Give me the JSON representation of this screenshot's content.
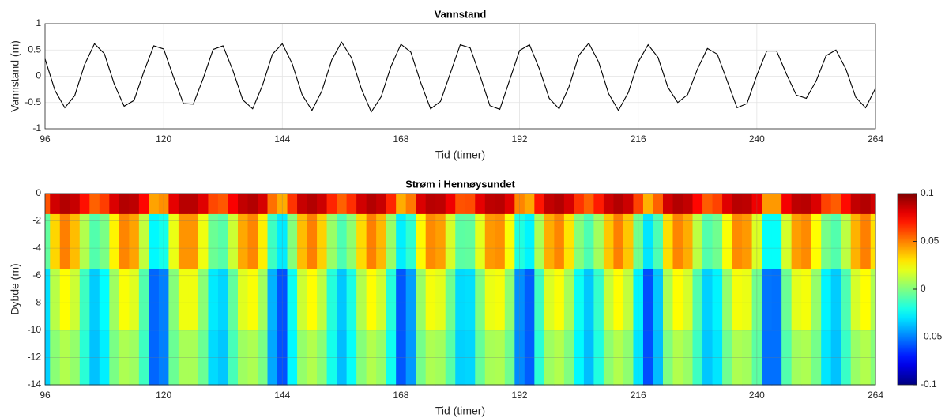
{
  "chart_data": [
    {
      "type": "line",
      "title": "Vannstand",
      "xlabel": "Tid (timer)",
      "ylabel": "Vannstand (m)",
      "color": "#000000",
      "grid": true,
      "xlim": [
        96,
        264
      ],
      "ylim": [
        -1,
        1
      ],
      "xticks": [
        96,
        120,
        144,
        168,
        192,
        216,
        240,
        264
      ],
      "yticks": [
        -1,
        -0.5,
        0,
        0.5,
        1
      ],
      "x": [
        96,
        98,
        100,
        102,
        104,
        106,
        108,
        110,
        112,
        114,
        116,
        118,
        120,
        122,
        124,
        126,
        128,
        130,
        132,
        134,
        136,
        138,
        140,
        142,
        144,
        146,
        148,
        150,
        152,
        154,
        156,
        158,
        160,
        162,
        164,
        166,
        168,
        170,
        172,
        174,
        176,
        178,
        180,
        182,
        184,
        186,
        188,
        190,
        192,
        194,
        196,
        198,
        200,
        202,
        204,
        206,
        208,
        210,
        212,
        214,
        216,
        218,
        220,
        222,
        224,
        226,
        228,
        230,
        232,
        234,
        236,
        238,
        240,
        242,
        244,
        246,
        248,
        250,
        252,
        254,
        256,
        258,
        260,
        262,
        264
      ],
      "values": [
        0.33,
        -0.27,
        -0.6,
        -0.37,
        0.22,
        0.62,
        0.43,
        -0.15,
        -0.57,
        -0.46,
        0.09,
        0.58,
        0.52,
        -0.02,
        -0.52,
        -0.53,
        -0.04,
        0.51,
        0.58,
        0.11,
        -0.45,
        -0.62,
        -0.17,
        0.42,
        0.62,
        0.24,
        -0.35,
        -0.65,
        -0.28,
        0.31,
        0.65,
        0.35,
        -0.24,
        -0.68,
        -0.39,
        0.19,
        0.61,
        0.46,
        -0.12,
        -0.62,
        -0.48,
        0.06,
        0.6,
        0.54,
        0.01,
        -0.56,
        -0.63,
        -0.07,
        0.49,
        0.6,
        0.14,
        -0.42,
        -0.62,
        -0.2,
        0.4,
        0.63,
        0.27,
        -0.33,
        -0.65,
        -0.31,
        0.27,
        0.6,
        0.36,
        -0.21,
        -0.5,
        -0.35,
        0.14,
        0.53,
        0.42,
        -0.09,
        -0.6,
        -0.52,
        0.02,
        0.48,
        0.48,
        0.04,
        -0.36,
        -0.42,
        -0.09,
        0.39,
        0.5,
        0.14,
        -0.4,
        -0.6,
        -0.23
      ]
    },
    {
      "type": "heatmap",
      "title": "Strøm i Hennøysundet",
      "xlabel": "Tid (timer)",
      "ylabel": "Dybde (m)",
      "colormap": "jet",
      "grid": true,
      "xlim": [
        96,
        264
      ],
      "ylim": [
        -14,
        0
      ],
      "xticks": [
        96,
        120,
        144,
        168,
        192,
        216,
        240,
        264
      ],
      "yticks": [
        0,
        -2,
        -4,
        -6,
        -8,
        -10,
        -12,
        -14
      ],
      "clim": [
        -0.1,
        0.1
      ],
      "cticks": [
        0.1,
        0.05,
        0,
        -0.05,
        -0.1
      ],
      "x": [
        96,
        98,
        100,
        102,
        104,
        106,
        108,
        110,
        112,
        114,
        116,
        118,
        120,
        122,
        124,
        126,
        128,
        130,
        132,
        134,
        136,
        138,
        140,
        142,
        144,
        146,
        148,
        150,
        152,
        154,
        156,
        158,
        160,
        162,
        164,
        166,
        168,
        170,
        172,
        174,
        176,
        178,
        180,
        182,
        184,
        186,
        188,
        190,
        192,
        194,
        196,
        198,
        200,
        202,
        204,
        206,
        208,
        210,
        212,
        214,
        216,
        218,
        220,
        222,
        224,
        226,
        228,
        230,
        232,
        234,
        236,
        238,
        240,
        242,
        244,
        246,
        248,
        250,
        252,
        254,
        256,
        258,
        260,
        262,
        264
      ],
      "y": [
        0,
        -3,
        -8,
        -12
      ],
      "z": [
        [
          0.059,
          0.084,
          0.09,
          0.086,
          0.072,
          0.056,
          0.063,
          0.082,
          0.09,
          0.088,
          0.074,
          0.043,
          0.047,
          0.08,
          0.089,
          0.089,
          0.081,
          0.061,
          0.058,
          0.076,
          0.087,
          0.09,
          0.083,
          0.053,
          0.041,
          0.065,
          0.086,
          0.09,
          0.085,
          0.068,
          0.056,
          0.066,
          0.084,
          0.09,
          0.086,
          0.068,
          0.041,
          0.051,
          0.082,
          0.089,
          0.088,
          0.078,
          0.059,
          0.06,
          0.08,
          0.088,
          0.089,
          0.081,
          0.049,
          0.042,
          0.071,
          0.087,
          0.09,
          0.083,
          0.065,
          0.056,
          0.07,
          0.085,
          0.09,
          0.085,
          0.062,
          0.04,
          0.056,
          0.084,
          0.09,
          0.087,
          0.074,
          0.057,
          0.062,
          0.081,
          0.089,
          0.088,
          0.078,
          0.045,
          0.045,
          0.077,
          0.088,
          0.089,
          0.082,
          0.062,
          0.057,
          0.073,
          0.087,
          0.09,
          0.084
        ],
        [
          -0.006,
          0.033,
          0.05,
          0.038,
          0.01,
          -0.009,
          -0.001,
          0.027,
          0.049,
          0.043,
          0.013,
          -0.026,
          -0.021,
          0.021,
          0.046,
          0.046,
          0.022,
          -0.004,
          -0.008,
          0.015,
          0.042,
          0.049,
          0.028,
          -0.013,
          -0.029,
          0.001,
          0.038,
          0.05,
          0.034,
          0.005,
          -0.01,
          0.003,
          0.032,
          0.05,
          0.039,
          0.005,
          -0.028,
          -0.016,
          0.026,
          0.048,
          0.044,
          0.017,
          -0.007,
          -0.006,
          0.02,
          0.045,
          0.047,
          0.024,
          -0.019,
          -0.027,
          0.009,
          0.041,
          0.049,
          0.03,
          0.001,
          -0.01,
          0.007,
          0.036,
          0.05,
          0.036,
          -0.003,
          -0.03,
          -0.01,
          0.031,
          0.049,
          0.041,
          0.012,
          -0.009,
          -0.003,
          0.024,
          0.048,
          0.045,
          0.018,
          -0.024,
          -0.024,
          0.017,
          0.044,
          0.048,
          0.025,
          -0.002,
          -0.009,
          0.012,
          0.04,
          0.05,
          0.031
        ],
        [
          -0.031,
          0.011,
          0.025,
          0.015,
          -0.013,
          -0.035,
          -0.025,
          0.006,
          0.024,
          0.019,
          -0.009,
          -0.055,
          -0.05,
          0.001,
          0.022,
          0.022,
          0.002,
          -0.029,
          -0.033,
          -0.006,
          0.019,
          0.024,
          0.007,
          -0.04,
          -0.059,
          -0.023,
          0.015,
          0.025,
          0.012,
          -0.018,
          -0.036,
          -0.02,
          0.01,
          0.025,
          0.016,
          -0.018,
          -0.058,
          -0.044,
          0.005,
          0.023,
          0.02,
          -0.003,
          -0.032,
          -0.031,
          0,
          0.021,
          0.023,
          0.003,
          -0.047,
          -0.057,
          -0.013,
          0.018,
          0.024,
          0.008,
          -0.023,
          -0.036,
          -0.015,
          0.014,
          0.025,
          0.013,
          -0.027,
          -0.06,
          -0.036,
          0.009,
          0.025,
          0.017,
          -0.009,
          -0.034,
          -0.027,
          0.004,
          0.023,
          0.021,
          -0.003,
          -0.052,
          -0.053,
          -0.004,
          0.02,
          0.023,
          0.004,
          -0.027,
          -0.035,
          -0.01,
          0.017,
          0.025,
          0.009
        ],
        [
          -0.034,
          0.002,
          0.01,
          0.004,
          -0.017,
          -0.037,
          -0.028,
          -0.001,
          0.009,
          0.006,
          -0.013,
          -0.055,
          -0.05,
          -0.004,
          0.008,
          0.008,
          -0.004,
          -0.032,
          -0.036,
          -0.011,
          0.006,
          0.009,
          -0.001,
          -0.042,
          -0.059,
          -0.026,
          0.004,
          0.01,
          0.002,
          -0.021,
          -0.038,
          -0.024,
          0.001,
          0.01,
          0.005,
          -0.022,
          -0.058,
          -0.045,
          -0.002,
          0.009,
          0.007,
          -0.008,
          -0.034,
          -0.033,
          -0.005,
          0.008,
          0.009,
          -0.003,
          -0.048,
          -0.057,
          -0.017,
          0.006,
          0.01,
          0,
          -0.026,
          -0.038,
          -0.019,
          0.003,
          0.01,
          0.003,
          -0.03,
          -0.06,
          -0.038,
          0,
          0.01,
          0.005,
          -0.013,
          -0.036,
          -0.03,
          -0.003,
          0.009,
          0.007,
          -0.007,
          -0.053,
          -0.053,
          -0.009,
          0.007,
          0.009,
          -0.002,
          -0.03,
          -0.037,
          -0.014,
          0.005,
          0.01,
          0.001
        ]
      ]
    }
  ]
}
